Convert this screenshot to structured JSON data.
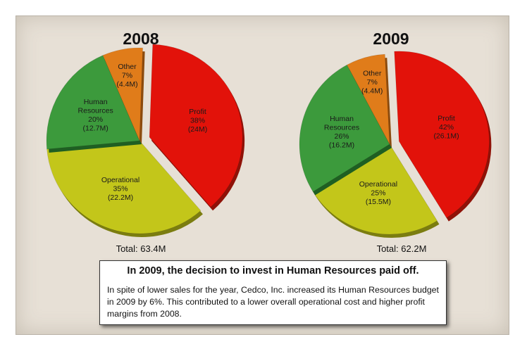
{
  "chart_data": [
    {
      "type": "pie",
      "title": "2008",
      "total_label": "Total: 63.4M",
      "slices": [
        {
          "name": "Profit",
          "percent": 38,
          "value_label": "(24M)",
          "color": "#e2120a",
          "exploded": true
        },
        {
          "name": "Operational",
          "percent": 35,
          "value_label": "(22.2M)",
          "color": "#c3c61a"
        },
        {
          "name": "Human Resources",
          "percent": 20,
          "value_label": "(12.7M)",
          "color": "#3c9a3c"
        },
        {
          "name": "Other",
          "percent": 7,
          "value_label": "(4.4M)",
          "color": "#e07c1a"
        }
      ]
    },
    {
      "type": "pie",
      "title": "2009",
      "total_label": "Total: 62.2M",
      "slices": [
        {
          "name": "Profit",
          "percent": 42,
          "value_label": "(26.1M)",
          "color": "#e2120a",
          "exploded": true
        },
        {
          "name": "Operational",
          "percent": 25,
          "value_label": "(15.5M)",
          "color": "#c3c61a"
        },
        {
          "name": "Human Resources",
          "percent": 26,
          "value_label": "(16.2M)",
          "color": "#3c9a3c"
        },
        {
          "name": "Other",
          "percent": 7,
          "value_label": "(4.4M)",
          "color": "#e07c1a"
        }
      ]
    }
  ],
  "callout": {
    "headline": "In 2009, the decision to invest in Human Resources paid off.",
    "body": "In spite of lower sales for the year, Cedco, Inc. increased its Human Resources budget in 2009 by 6%. This contributed to a lower overall operational cost and higher profit margins from 2008."
  }
}
